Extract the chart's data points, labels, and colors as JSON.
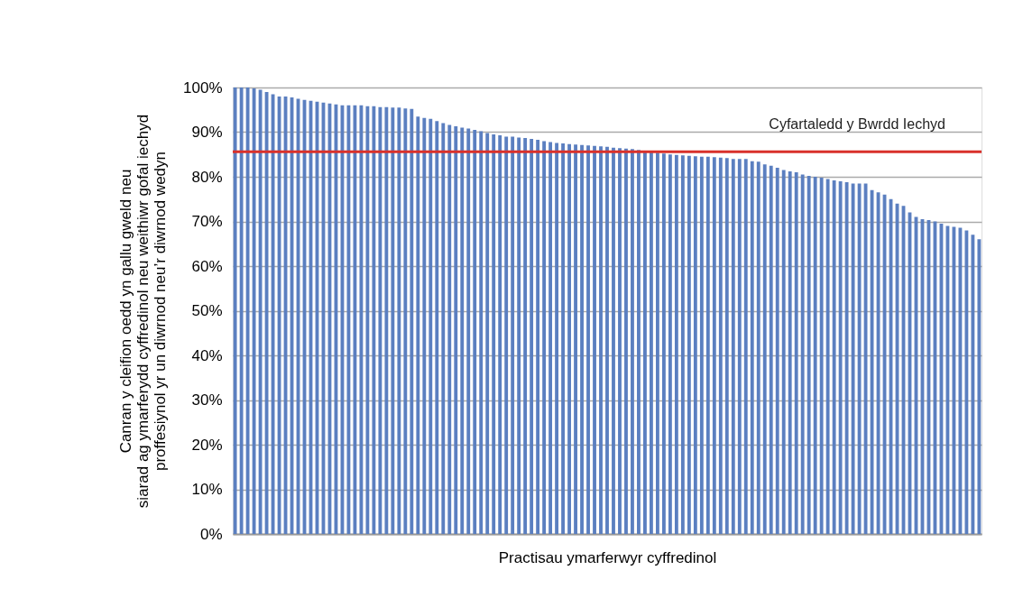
{
  "chart_data": {
    "type": "bar",
    "xlabel": "Practisau ymarferwyr cyffredinol",
    "ylabel": "Canran y cleifion oedd yn gallu gweld neu siarad ag ymarferydd cyffredinol neu weithiwr gofal iechyd proffesiynol yr un diwrnod neu’r diwrnod wedyn",
    "categories": [
      null,
      null,
      null,
      null,
      null,
      null,
      null,
      null,
      null,
      null,
      null,
      null,
      null,
      null,
      null,
      null,
      null,
      null,
      null,
      null,
      null,
      null,
      null,
      null,
      null,
      null,
      null,
      null,
      null,
      null,
      null,
      null,
      null,
      null,
      null,
      null,
      null,
      null,
      null,
      null,
      null,
      null,
      null,
      null,
      null,
      null,
      null,
      null,
      null,
      null,
      null,
      null,
      null,
      null,
      null,
      null,
      null,
      null,
      null,
      null,
      null,
      null,
      null,
      null,
      null,
      null,
      null,
      null,
      null,
      null,
      null,
      null,
      null,
      null,
      null,
      null,
      null,
      null,
      null,
      null,
      null,
      null,
      null,
      null,
      null,
      null,
      null,
      null,
      null,
      null,
      null,
      null,
      null,
      null,
      null,
      null,
      null,
      null,
      null,
      null,
      null,
      null,
      null,
      null,
      null,
      null,
      null,
      null,
      null,
      null,
      null,
      null,
      null,
      null,
      null,
      null,
      null,
      null,
      null
    ],
    "series": [
      {
        "color": "#5b7fc0",
        "values": [
          100,
          100,
          100,
          99.8,
          99.5,
          99,
          98.5,
          98,
          98,
          97.8,
          97.5,
          97.2,
          97,
          96.8,
          96.6,
          96.4,
          96.2,
          96,
          96,
          96,
          96,
          95.8,
          95.8,
          95.6,
          95.6,
          95.5,
          95.5,
          95.3,
          95.2,
          93.5,
          93.2,
          93,
          92.5,
          92,
          91.6,
          91.3,
          91,
          90.8,
          90.5,
          90.2,
          89.8,
          89.5,
          89.3,
          89,
          89,
          88.8,
          88.7,
          88.5,
          88.3,
          88,
          87.8,
          87.6,
          87.5,
          87.3,
          87.2,
          87.1,
          87,
          86.9,
          86.8,
          86.7,
          86.5,
          86.4,
          86.3,
          86.2,
          86,
          85.8,
          85.6,
          85.4,
          85.2,
          85,
          84.9,
          84.8,
          84.7,
          84.6,
          84.5,
          84.5,
          84.4,
          84.3,
          84.2,
          84,
          84,
          84,
          83.5,
          83.4,
          82.8,
          82.5,
          82,
          81.5,
          81.2,
          81,
          80.5,
          80.2,
          80,
          79.8,
          79.5,
          79.2,
          79,
          78.8,
          78.5,
          78.5,
          78.5,
          77,
          76.5,
          76,
          75,
          74,
          73.5,
          72,
          71,
          70.5,
          70.3,
          70,
          69.5,
          69,
          68.8,
          68.6,
          68,
          67,
          66
        ]
      }
    ],
    "ylim": [
      0,
      100
    ],
    "yticks": [
      {
        "value": 0,
        "label": "0%"
      },
      {
        "value": 10,
        "label": "10%"
      },
      {
        "value": 20,
        "label": "20%"
      },
      {
        "value": 30,
        "label": "30%"
      },
      {
        "value": 40,
        "label": "40%"
      },
      {
        "value": 50,
        "label": "50%"
      },
      {
        "value": 60,
        "label": "60%"
      },
      {
        "value": 70,
        "label": "70%"
      },
      {
        "value": 80,
        "label": "80%"
      },
      {
        "value": 90,
        "label": "90%"
      },
      {
        "value": 100,
        "label": "100%"
      }
    ],
    "ref_lines": [
      {
        "axis": "y",
        "value": 85.6,
        "label": "Cyfartaledd y Bwrdd Iechyd",
        "color": "#d9312b"
      }
    ],
    "grid": "y",
    "tick_labels": "y"
  }
}
